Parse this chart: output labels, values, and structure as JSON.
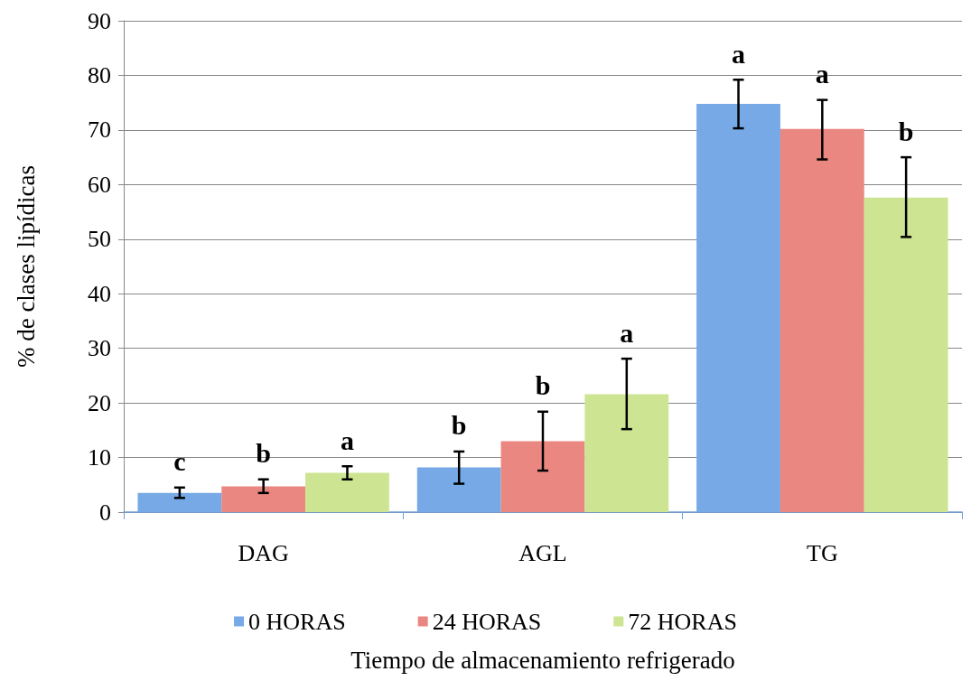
{
  "chart_data": {
    "type": "bar",
    "xlabel": "Tiempo de almacenamiento refrigerado",
    "ylabel": "% de clases lipídicas",
    "categories": [
      "DAG",
      "AGL",
      "TG"
    ],
    "series": [
      {
        "name": "0 HORAS",
        "color": "#76a9e6",
        "values": [
          3.5,
          8.2,
          74.8
        ],
        "errors": [
          [
            2.6,
            4.5
          ],
          [
            5.2,
            11.1
          ],
          [
            70.3,
            79.2
          ]
        ],
        "value_labels": [
          "c",
          "b",
          "a"
        ]
      },
      {
        "name": "24 HORAS",
        "color": "#ea8780",
        "values": [
          4.7,
          13,
          70.2
        ],
        "errors": [
          [
            3.5,
            6
          ],
          [
            7.6,
            18.4
          ],
          [
            64.6,
            75.5
          ]
        ],
        "value_labels": [
          "b",
          "b",
          "a"
        ]
      },
      {
        "name": "72 HORAS",
        "color": "#cde592",
        "values": [
          7.2,
          21.6,
          57.6
        ],
        "errors": [
          [
            6,
            8.4
          ],
          [
            15.2,
            28.1
          ],
          [
            50.4,
            65
          ]
        ],
        "value_labels": [
          "a",
          "a",
          "b"
        ]
      }
    ],
    "ylim": [
      0,
      90
    ],
    "yticks": [
      0,
      10,
      20,
      30,
      40,
      50,
      60,
      70,
      80,
      90
    ],
    "grid": "y",
    "legend": "bottom"
  }
}
